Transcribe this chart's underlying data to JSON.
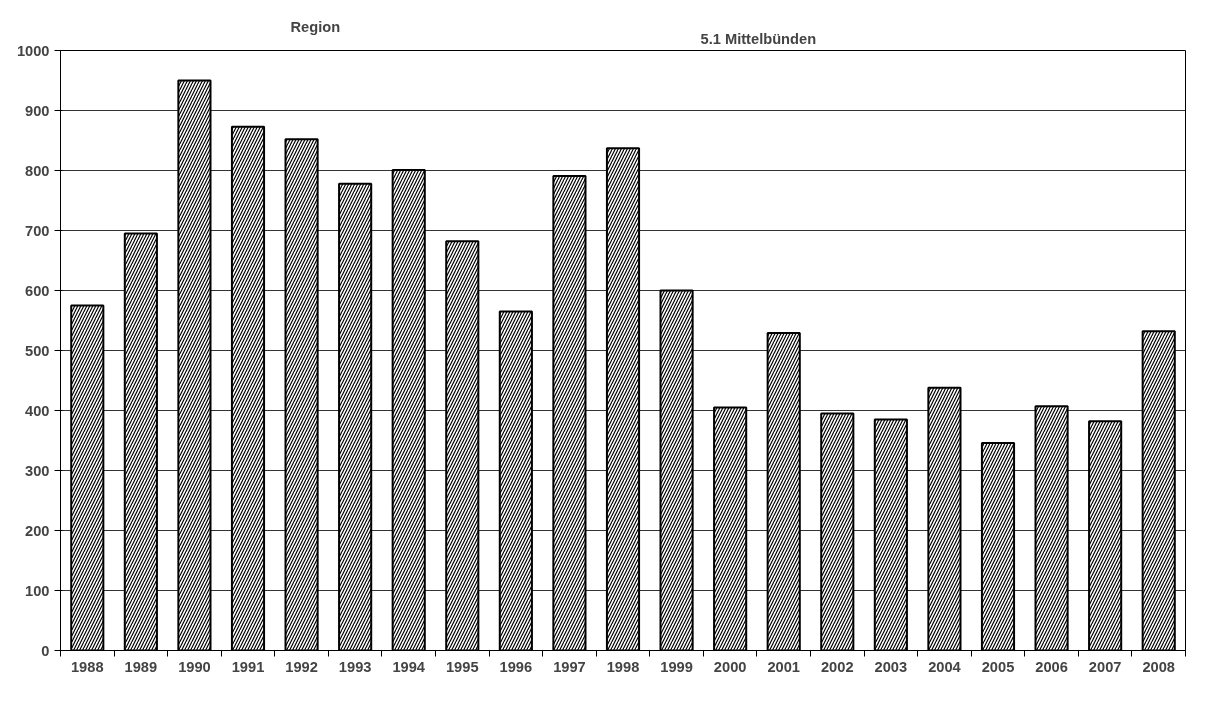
{
  "chart_data": {
    "type": "bar",
    "title": "Region",
    "subtitle": "5.1 Mittelbünden",
    "categories": [
      "1988",
      "1989",
      "1990",
      "1991",
      "1992",
      "1993",
      "1994",
      "1995",
      "1996",
      "1997",
      "1998",
      "1999",
      "2000",
      "2001",
      "2002",
      "2003",
      "2004",
      "2005",
      "2006",
      "2007",
      "2008"
    ],
    "values": [
      575,
      695,
      950,
      873,
      852,
      778,
      801,
      682,
      565,
      791,
      837,
      600,
      405,
      529,
      395,
      385,
      438,
      346,
      407,
      382,
      532
    ],
    "color": "#000000",
    "ylim": [
      0,
      1000
    ],
    "yticks": [
      0,
      100,
      200,
      300,
      400,
      500,
      600,
      700,
      800,
      900,
      1000
    ],
    "grid": "y"
  }
}
